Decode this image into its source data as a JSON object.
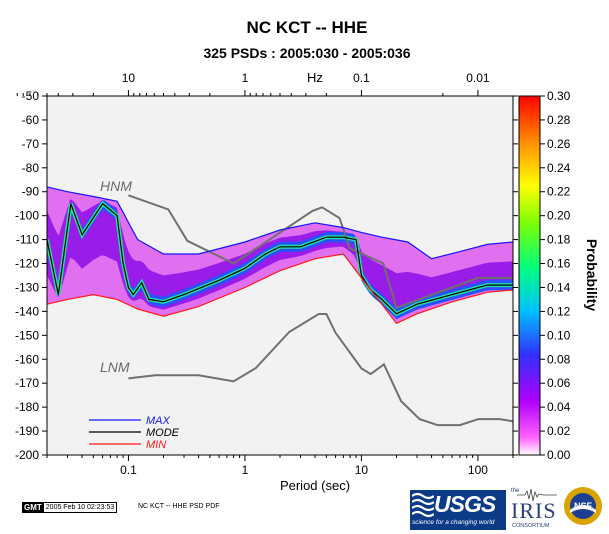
{
  "chart_data": {
    "type": "heatmap",
    "title": "NC KCT -- HHE",
    "subtitle": "325 PSDs : 2005:030 - 2005:036",
    "xlabel": "Period (sec)",
    "top_axis_label": "Hz",
    "colorbar_label": "Probability",
    "x_scale": "log",
    "xlim": [
      0.02,
      200
    ],
    "ylim": [
      -200,
      -50
    ],
    "x_ticks": [
      0.1,
      1,
      10,
      100
    ],
    "x_tick_labels": [
      "0.1",
      "1",
      "10",
      "100"
    ],
    "top_ticks": [
      10,
      1,
      0.1,
      0.01
    ],
    "top_tick_labels": [
      "10",
      "1",
      "0.1",
      "0.01"
    ],
    "y_ticks": [
      -50,
      -60,
      -70,
      -80,
      -90,
      -100,
      -110,
      -120,
      -130,
      -140,
      -150,
      -160,
      -170,
      -180,
      -190,
      -200
    ],
    "y_tick_labels": [
      "-50",
      "-60",
      "-70",
      "-80",
      "-90",
      "-100",
      "-110",
      "-120",
      "-130",
      "-140",
      "-150",
      "-160",
      "-170",
      "-180",
      "-190",
      "-200"
    ],
    "colorbar_range": [
      0,
      0.3
    ],
    "colorbar_ticks": [
      0.0,
      0.02,
      0.04,
      0.06,
      0.08,
      0.1,
      0.12,
      0.14,
      0.16,
      0.18,
      0.2,
      0.22,
      0.24,
      0.26,
      0.28,
      0.3
    ],
    "colorbar_tick_labels": [
      "0.00",
      "0.02",
      "0.04",
      "0.06",
      "0.08",
      "0.10",
      "0.12",
      "0.14",
      "0.16",
      "0.18",
      "0.20",
      "0.22",
      "0.24",
      "0.26",
      "0.28",
      "0.30"
    ],
    "reference_curves": [
      {
        "label": "HNM",
        "color": "#707070",
        "x": [
          0.1,
          0.22,
          0.32,
          0.8,
          3.8,
          4.6,
          6.5,
          7.9,
          15.4,
          20,
          100,
          200
        ],
        "y": [
          -91.5,
          -97.4,
          -110.5,
          -120,
          -98,
          -96.5,
          -101,
          -113.5,
          -120,
          -138.5,
          -126,
          -126
        ]
      },
      {
        "label": "LNM",
        "color": "#707070",
        "x": [
          0.1,
          0.17,
          0.4,
          0.8,
          1.24,
          2.4,
          4.3,
          5,
          6,
          10,
          12,
          15.6,
          21.9,
          31.6,
          45,
          70,
          101,
          154,
          200
        ],
        "y": [
          -168,
          -166.7,
          -166.7,
          -169.2,
          -163.7,
          -148.6,
          -141.1,
          -141.1,
          -149,
          -163.8,
          -166.2,
          -162.1,
          -177.5,
          -185,
          -187.5,
          -187.5,
          -185,
          -185,
          -185.9
        ]
      }
    ],
    "series": [
      {
        "name": "MAX",
        "color": "#1414ff",
        "x": [
          0.02,
          0.03,
          0.05,
          0.08,
          0.12,
          0.2,
          0.4,
          1,
          2,
          4,
          7,
          10,
          15,
          25,
          40,
          70,
          120,
          200
        ],
        "y": [
          -88,
          -90,
          -92,
          -94,
          -110,
          -116,
          -116,
          -111,
          -106,
          -103,
          -105,
          -107,
          -109,
          -111,
          -118,
          -115,
          -112,
          -111
        ]
      },
      {
        "name": "MODE",
        "color": "#000000",
        "x": [
          0.02,
          0.025,
          0.032,
          0.04,
          0.06,
          0.08,
          0.09,
          0.1,
          0.11,
          0.13,
          0.15,
          0.2,
          0.3,
          0.6,
          1,
          1.5,
          2,
          3,
          5,
          7,
          9,
          10,
          12,
          15,
          20,
          30,
          60,
          120,
          200
        ],
        "y": [
          -110,
          -133,
          -95,
          -108,
          -95,
          -100,
          -120,
          -130,
          -133,
          -128,
          -135,
          -136,
          -133,
          -127,
          -122,
          -116,
          -113,
          -113,
          -109,
          -109,
          -110,
          -125,
          -131,
          -135,
          -141,
          -137,
          -133,
          -129,
          -129
        ]
      },
      {
        "name": "MIN",
        "color": "#ff1a1a",
        "x": [
          0.02,
          0.03,
          0.05,
          0.08,
          0.12,
          0.2,
          0.4,
          1,
          2,
          4,
          7,
          10,
          15,
          20,
          30,
          60,
          120,
          200
        ],
        "y": [
          -137,
          -135,
          -133,
          -135,
          -139,
          -142,
          -138,
          -130,
          -123,
          -118,
          -116,
          -126,
          -137,
          -145,
          -141,
          -136,
          -132,
          -131
        ]
      }
    ],
    "legend": "bottom-left"
  },
  "footer": {
    "gmt_tag": "GMT",
    "timestamp": "2005 Feb 10 02:23:53",
    "label": "NC KCT -- HHE PSD PDF"
  },
  "logos": {
    "usgs_word": "USGS",
    "usgs_tagline": "science for a changing world",
    "iris_the": "the",
    "iris_word": "IRIS",
    "iris_sub": "CONSORTIUM",
    "nsf_word": "NSF"
  }
}
